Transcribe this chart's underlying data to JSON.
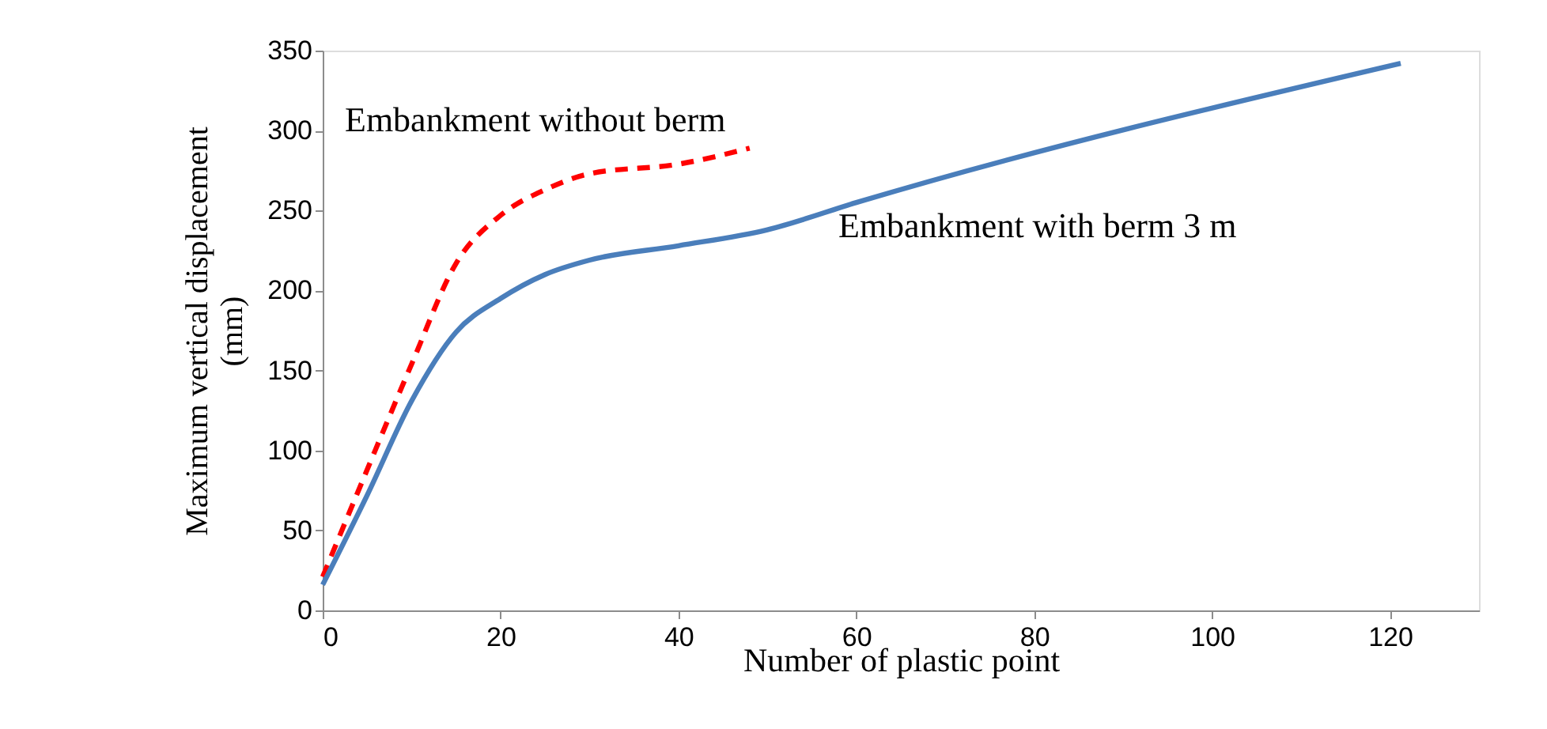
{
  "chart_data": {
    "type": "line",
    "xlabel": "Number of plastic point",
    "ylabel": "Maximum vertical displacement\n(mm)",
    "xlim": [
      0,
      130
    ],
    "xticks": [
      0,
      20,
      40,
      60,
      80,
      100,
      120
    ],
    "ylim": [
      0,
      350
    ],
    "yticks": [
      0,
      50,
      100,
      150,
      200,
      250,
      300,
      350
    ],
    "grid": false,
    "marker": "none",
    "series": [
      {
        "color": "#ff0000",
        "line_style": "dashed",
        "x": [
          0,
          5,
          10,
          15,
          20,
          25,
          30,
          40,
          48
        ],
        "values": [
          21,
          88,
          154,
          217,
          247,
          263,
          273,
          279,
          289
        ]
      },
      {
        "color": "#4a7ebb",
        "line_style": "solid",
        "x": [
          0,
          5,
          10,
          15,
          20,
          25,
          30,
          40,
          50,
          60,
          121.2
        ],
        "values": [
          16,
          72,
          131,
          174,
          195,
          210,
          219,
          228,
          238,
          255,
          342
        ]
      }
    ],
    "annotations": [
      "Embankment without berm",
      "Embankment with berm  3 m"
    ]
  }
}
